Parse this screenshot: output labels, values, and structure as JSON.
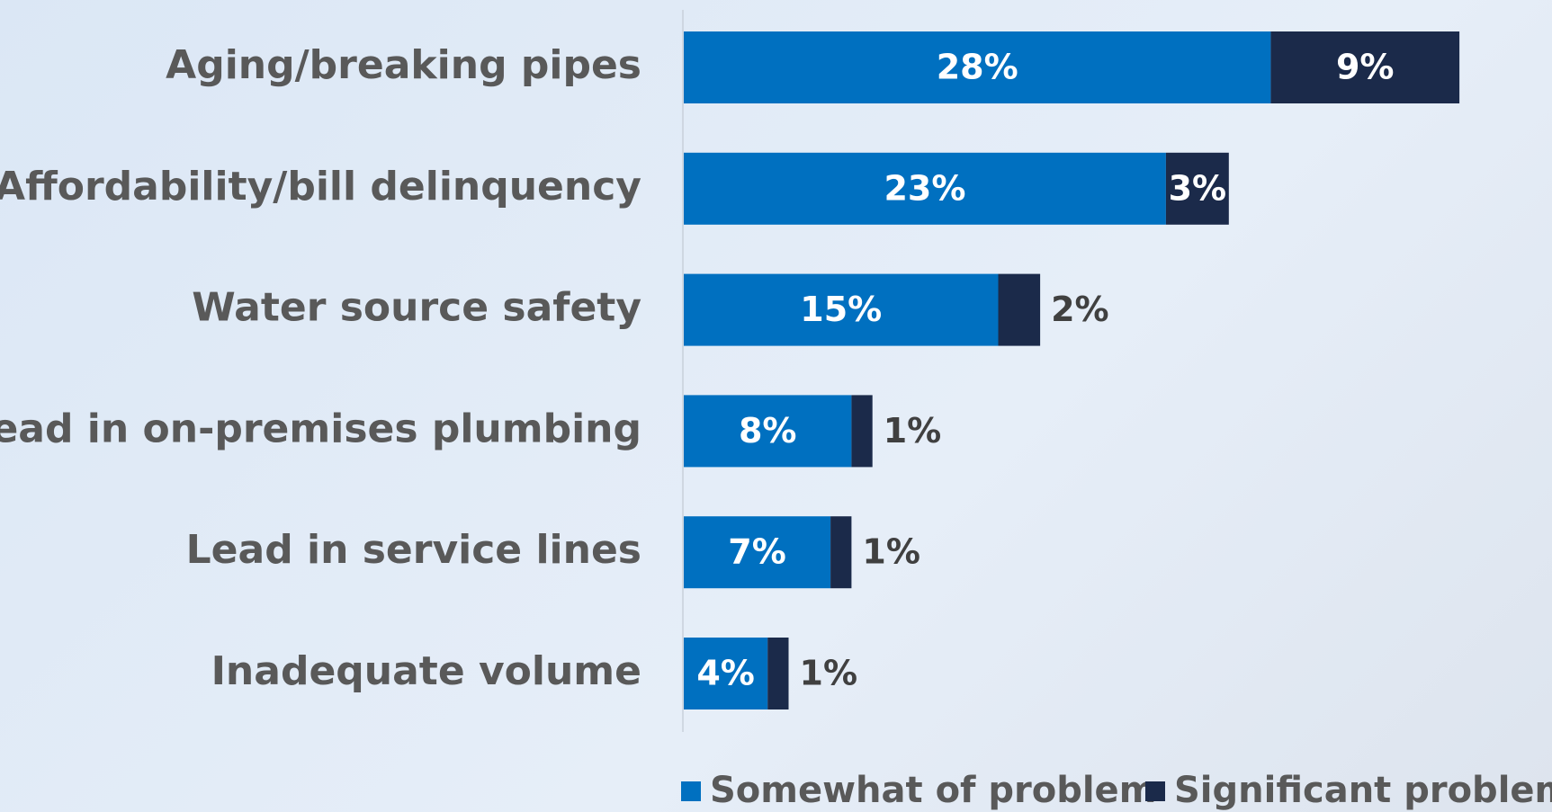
{
  "chart_data": {
    "type": "stacked_bar_horizontal",
    "categories": [
      "Aging/breaking pipes",
      "Affordability/bill delinquency",
      "Water source safety",
      "Lead in on-premises plumbing",
      "Lead in service lines",
      "Inadequate volume"
    ],
    "series": [
      {
        "name": "Somewhat of problem",
        "color": "#0070c0",
        "values": [
          28,
          23,
          15,
          8,
          7,
          4
        ],
        "value_labels": [
          "28%",
          "23%",
          "15%",
          "8%",
          "7%",
          "4%"
        ]
      },
      {
        "name": "Significant problem",
        "color": "#1b2a4a",
        "values": [
          9,
          3,
          2,
          1,
          1,
          1
        ],
        "value_labels": [
          "9%",
          "3%",
          "2%",
          "1%",
          "1%",
          "1%"
        ]
      }
    ],
    "legend": "bottom"
  }
}
